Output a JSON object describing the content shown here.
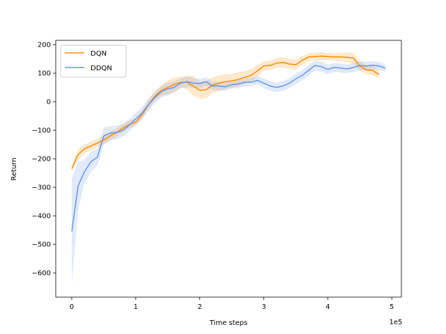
{
  "chart_data": {
    "type": "line",
    "title": "",
    "xlabel": "Time steps",
    "ylabel": "Return",
    "x_multiplier_label": "1e5",
    "xlim": [
      -0.25,
      5.15
    ],
    "ylim": [
      -685,
      215
    ],
    "x_ticks": [
      0,
      1,
      2,
      3,
      4,
      5
    ],
    "x_tick_labels": [
      "0",
      "1",
      "2",
      "3",
      "4",
      "5"
    ],
    "y_ticks": [
      200,
      100,
      0,
      -100,
      -200,
      -300,
      -400,
      -500,
      -600
    ],
    "y_tick_labels": [
      "200",
      "100",
      "0",
      "−100",
      "−200",
      "−300",
      "−400",
      "−500",
      "−600"
    ],
    "grid": false,
    "legend_position": "top-left",
    "series": [
      {
        "name": "DQN",
        "color": "#ff8c00",
        "x": [
          0,
          0.1,
          0.2,
          0.3,
          0.4,
          0.5,
          0.6,
          0.7,
          0.8,
          0.9,
          1.0,
          1.1,
          1.2,
          1.3,
          1.4,
          1.5,
          1.6,
          1.7,
          1.8,
          1.9,
          2.0,
          2.1,
          2.2,
          2.3,
          2.4,
          2.5,
          2.6,
          2.7,
          2.8,
          2.9,
          3.0,
          3.1,
          3.2,
          3.3,
          3.4,
          3.5,
          3.6,
          3.7,
          3.8,
          3.9,
          4.0,
          4.1,
          4.2,
          4.3,
          4.4,
          4.5,
          4.6,
          4.7,
          4.8
        ],
        "y": [
          -235,
          -185,
          -165,
          -155,
          -145,
          -135,
          -120,
          -108,
          -92,
          -80,
          -72,
          -45,
          -10,
          20,
          40,
          50,
          60,
          68,
          68,
          55,
          40,
          42,
          58,
          65,
          70,
          73,
          78,
          85,
          92,
          108,
          125,
          128,
          135,
          138,
          132,
          130,
          145,
          157,
          158,
          160,
          158,
          157,
          157,
          156,
          153,
          125,
          112,
          110,
          95
        ],
        "lower": [
          -245,
          -205,
          -180,
          -170,
          -160,
          -150,
          -135,
          -122,
          -106,
          -93,
          -86,
          -60,
          -26,
          4,
          22,
          26,
          35,
          48,
          45,
          20,
          10,
          12,
          30,
          38,
          44,
          48,
          54,
          62,
          70,
          88,
          108,
          112,
          118,
          120,
          115,
          112,
          130,
          143,
          144,
          146,
          145,
          144,
          142,
          140,
          133,
          108,
          96,
          92,
          82
        ],
        "upper": [
          -225,
          -165,
          -150,
          -140,
          -130,
          -120,
          -105,
          -94,
          -78,
          -67,
          -58,
          -30,
          6,
          36,
          58,
          74,
          85,
          88,
          91,
          90,
          70,
          72,
          86,
          92,
          96,
          98,
          102,
          108,
          114,
          128,
          142,
          144,
          152,
          156,
          150,
          148,
          160,
          171,
          172,
          174,
          171,
          170,
          172,
          172,
          173,
          142,
          128,
          128,
          108
        ]
      },
      {
        "name": "DDQN",
        "color": "#6495ed",
        "x": [
          0,
          0.1,
          0.2,
          0.3,
          0.4,
          0.5,
          0.6,
          0.7,
          0.8,
          0.9,
          1.0,
          1.1,
          1.2,
          1.3,
          1.4,
          1.5,
          1.6,
          1.7,
          1.8,
          1.9,
          2.0,
          2.1,
          2.2,
          2.3,
          2.4,
          2.5,
          2.6,
          2.7,
          2.8,
          2.9,
          3.0,
          3.1,
          3.2,
          3.3,
          3.4,
          3.5,
          3.6,
          3.7,
          3.8,
          3.9,
          4.0,
          4.1,
          4.2,
          4.3,
          4.4,
          4.5,
          4.6,
          4.7,
          4.8,
          4.9
        ],
        "y": [
          -455,
          -295,
          -245,
          -210,
          -195,
          -120,
          -110,
          -108,
          -100,
          -82,
          -60,
          -40,
          -10,
          15,
          35,
          45,
          50,
          65,
          70,
          65,
          64,
          70,
          55,
          55,
          52,
          60,
          62,
          68,
          68,
          75,
          65,
          55,
          50,
          55,
          65,
          80,
          92,
          110,
          127,
          123,
          113,
          120,
          118,
          115,
          120,
          127,
          125,
          128,
          125,
          118
        ],
        "lower": [
          -640,
          -380,
          -285,
          -245,
          -225,
          -150,
          -135,
          -132,
          -122,
          -104,
          -80,
          -62,
          -30,
          -5,
          15,
          22,
          30,
          48,
          52,
          48,
          48,
          54,
          40,
          40,
          38,
          46,
          48,
          54,
          54,
          60,
          48,
          38,
          34,
          38,
          48,
          62,
          74,
          92,
          110,
          106,
          96,
          104,
          102,
          100,
          104,
          111,
          110,
          113,
          111,
          105
        ],
        "upper": [
          -270,
          -210,
          -205,
          -175,
          -165,
          -90,
          -85,
          -84,
          -78,
          -60,
          -40,
          -18,
          12,
          35,
          55,
          68,
          70,
          82,
          88,
          82,
          80,
          86,
          70,
          70,
          66,
          74,
          76,
          82,
          82,
          90,
          82,
          72,
          66,
          72,
          82,
          98,
          110,
          128,
          144,
          140,
          130,
          136,
          134,
          130,
          136,
          143,
          140,
          143,
          139,
          131
        ]
      }
    ]
  }
}
